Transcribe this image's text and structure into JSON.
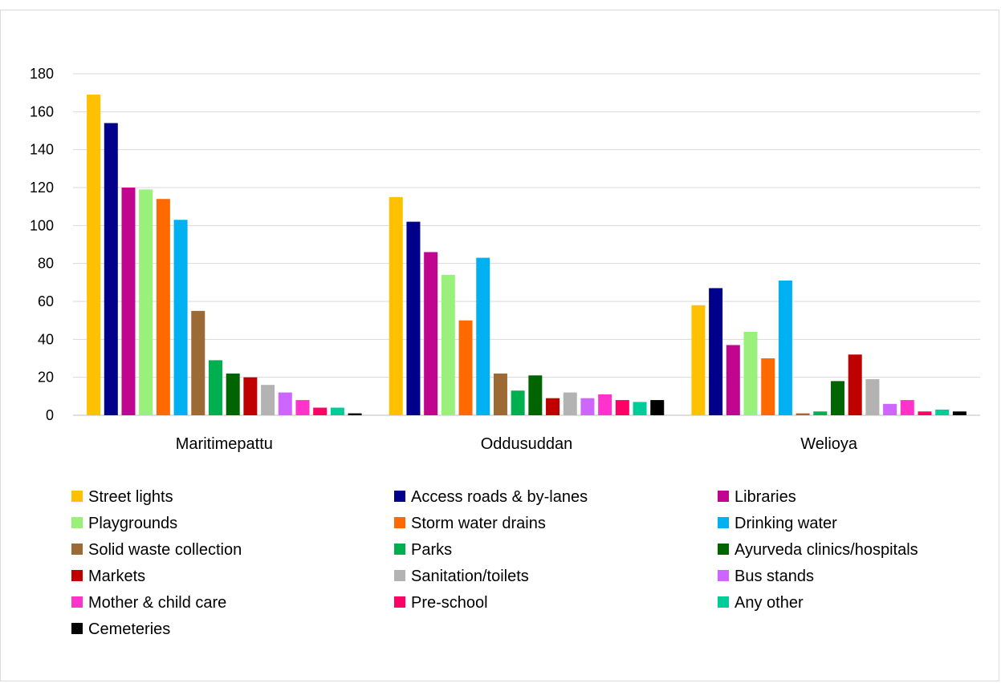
{
  "chart_data": {
    "type": "bar",
    "title": "",
    "xlabel": "",
    "ylabel": "",
    "ylim": [
      0,
      180
    ],
    "yticks": [
      0,
      20,
      40,
      60,
      80,
      100,
      120,
      140,
      160,
      180
    ],
    "grid": true,
    "legend_position": "bottom",
    "categories": [
      "Maritimepattu",
      "Oddusuddan",
      "Welioya"
    ],
    "series": [
      {
        "name": "Street lights",
        "color": "#FFC000",
        "values": [
          169,
          115,
          58
        ]
      },
      {
        "name": "Access roads & by-lanes",
        "color": "#00008B",
        "values": [
          154,
          102,
          67
        ]
      },
      {
        "name": "Libraries",
        "color": "#C0068F",
        "values": [
          120,
          86,
          37
        ]
      },
      {
        "name": "Playgrounds",
        "color": "#99F07A",
        "values": [
          119,
          74,
          44
        ]
      },
      {
        "name": "Storm water drains",
        "color": "#FF6A00",
        "values": [
          114,
          50,
          30
        ]
      },
      {
        "name": "Drinking water",
        "color": "#00B0F0",
        "values": [
          103,
          83,
          71
        ]
      },
      {
        "name": "Solid waste collection",
        "color": "#9C6A35",
        "values": [
          55,
          22,
          1
        ]
      },
      {
        "name": "Parks",
        "color": "#00B050",
        "values": [
          29,
          13,
          2
        ]
      },
      {
        "name": "Ayurveda clinics/hospitals",
        "color": "#006400",
        "values": [
          22,
          21,
          18
        ]
      },
      {
        "name": "Markets",
        "color": "#C00000",
        "values": [
          20,
          9,
          32
        ]
      },
      {
        "name": "Sanitation/toilets",
        "color": "#B3B3B3",
        "values": [
          16,
          12,
          19
        ]
      },
      {
        "name": "Bus stands",
        "color": "#CC66FF",
        "values": [
          12,
          9,
          6
        ]
      },
      {
        "name": "Mother & child care",
        "color": "#FF33CC",
        "values": [
          8,
          11,
          8
        ]
      },
      {
        "name": "Pre-school",
        "color": "#FF0066",
        "values": [
          4,
          8,
          2
        ]
      },
      {
        "name": "Any other",
        "color": "#00CC99",
        "values": [
          4,
          7,
          3
        ]
      },
      {
        "name": "Cemeteries",
        "color": "#000000",
        "values": [
          1,
          8,
          2
        ]
      }
    ]
  }
}
